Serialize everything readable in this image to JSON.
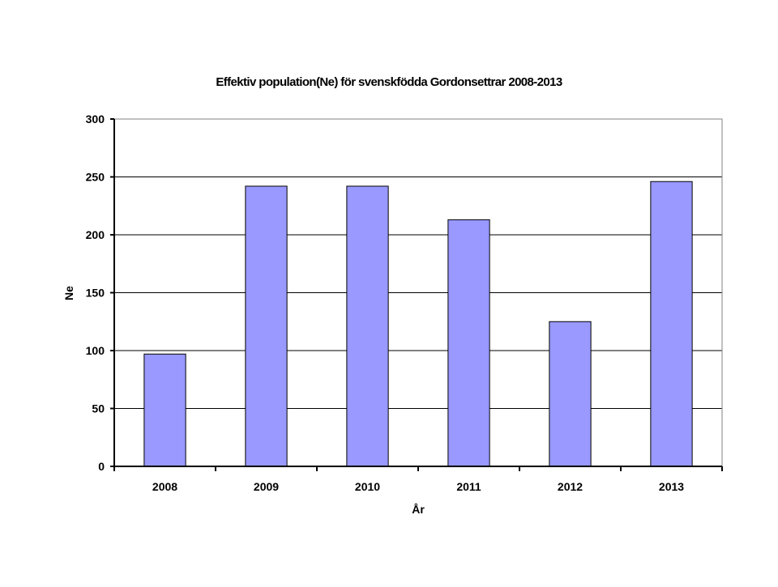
{
  "chart_data": {
    "type": "bar",
    "title": "Effektiv population(Ne) för svenskfödda Gordonsettrar 2008-2013",
    "xlabel": "År",
    "ylabel": "Ne",
    "categories": [
      "2008",
      "2009",
      "2010",
      "2011",
      "2012",
      "2013"
    ],
    "series": [
      {
        "values": [
          97,
          242,
          242,
          213,
          125,
          246
        ]
      }
    ],
    "ylim": [
      0,
      300
    ],
    "yticks": [
      0,
      50,
      100,
      150,
      200,
      250,
      300
    ],
    "grid": true,
    "legend": "none",
    "bar_color": "#9999ff",
    "bar_edge_color": "#000000",
    "gridline_color": "#000000",
    "background_color": "#ffffff"
  }
}
